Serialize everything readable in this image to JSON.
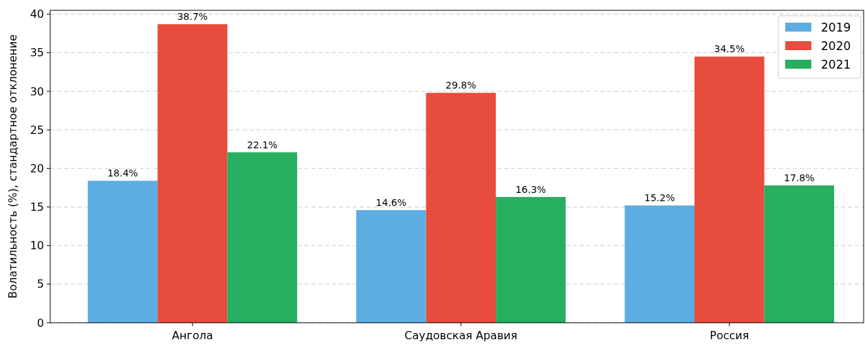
{
  "chart_data": {
    "type": "bar",
    "ylabel": "Волатильность (%), стандартное отклонение",
    "categories": [
      "Ангола",
      "Саудовская Аравия",
      "Россия"
    ],
    "series": [
      {
        "name": "2019",
        "color": "#5dade2",
        "values": [
          18.4,
          14.6,
          15.2
        ],
        "value_labels": [
          "18.4%",
          "14.6%",
          "15.2%"
        ]
      },
      {
        "name": "2020",
        "color": "#e74c3c",
        "values": [
          38.7,
          29.8,
          34.5
        ],
        "value_labels": [
          "38.7%",
          "29.8%",
          "34.5%"
        ]
      },
      {
        "name": "2021",
        "color": "#27ae60",
        "values": [
          22.1,
          16.3,
          17.8
        ],
        "value_labels": [
          "22.1%",
          "16.3%",
          "17.8%"
        ]
      }
    ],
    "ylim": [
      0,
      40.5
    ],
    "yticks": [
      0,
      5,
      10,
      15,
      20,
      25,
      30,
      35,
      40
    ],
    "grid": "y",
    "legend": "top right"
  }
}
